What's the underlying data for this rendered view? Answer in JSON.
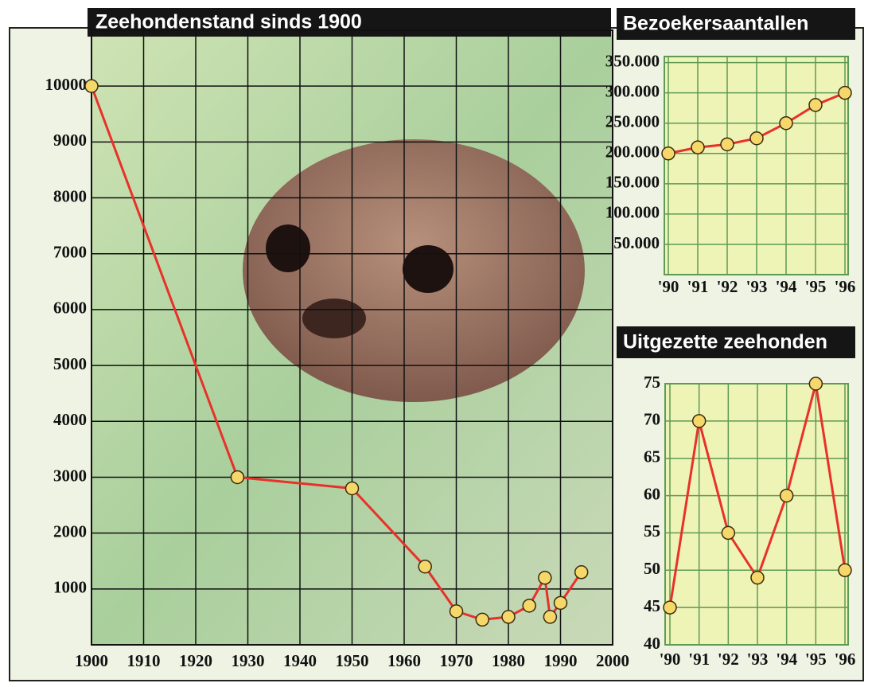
{
  "chart_data": [
    {
      "type": "line",
      "title": "Zeehondenstand sinds 1900",
      "x": [
        1900,
        1928,
        1950,
        1964,
        1970,
        1975,
        1980,
        1984,
        1987,
        1988,
        1990,
        1994
      ],
      "values": [
        10000,
        3000,
        2800,
        1400,
        600,
        450,
        500,
        700,
        1200,
        500,
        750,
        1300
      ],
      "xlim": [
        1900,
        2000
      ],
      "xticks": [
        1900,
        1910,
        1920,
        1930,
        1940,
        1950,
        1960,
        1970,
        1980,
        1990,
        2000
      ],
      "ylim": [
        0,
        11000
      ],
      "yticks": [
        1000,
        2000,
        3000,
        4000,
        5000,
        6000,
        7000,
        8000,
        9000,
        10000
      ],
      "color": "#e8312a",
      "marker_color": "#f6d86a",
      "grid": true,
      "grid_color": "#111111"
    },
    {
      "type": "line",
      "title": "Bezoekersaantallen",
      "categories": [
        "'90",
        "'91",
        "'92",
        "'93",
        "'94",
        "'95",
        "'96"
      ],
      "values": [
        200000,
        210000,
        215000,
        225000,
        250000,
        280000,
        300000
      ],
      "ylim": [
        0,
        360000
      ],
      "yticks": [
        {
          "value": 50000,
          "label": "50.000"
        },
        {
          "value": 100000,
          "label": "100.000"
        },
        {
          "value": 150000,
          "label": "150.000"
        },
        {
          "value": 200000,
          "label": "200.000"
        },
        {
          "value": 250000,
          "label": "250.000"
        },
        {
          "value": 300000,
          "label": "300.000"
        },
        {
          "value": 350000,
          "label": "350.000"
        }
      ],
      "color": "#e8312a",
      "marker_color": "#f6d86a",
      "grid": true,
      "grid_color": "#5f9a55",
      "background": "#eef3b6"
    },
    {
      "type": "line",
      "title": "Uitgezette zeehonden",
      "categories": [
        "'90",
        "'91",
        "'92",
        "'93",
        "'94",
        "'95",
        "'96"
      ],
      "values": [
        45,
        70,
        55,
        49,
        60,
        75,
        50
      ],
      "ylim": [
        40,
        75
      ],
      "yticks": [
        40,
        45,
        50,
        55,
        60,
        65,
        70,
        75
      ],
      "color": "#e8312a",
      "marker_color": "#f6d86a",
      "grid": true,
      "grid_color": "#5f9a55",
      "background": "#eef3b6"
    }
  ]
}
